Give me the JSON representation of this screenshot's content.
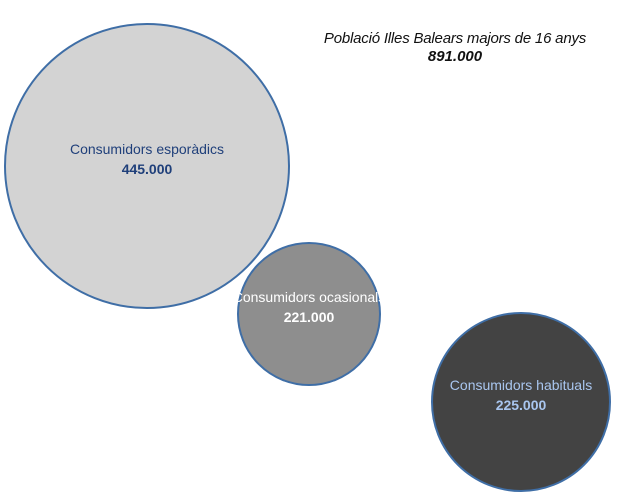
{
  "title": {
    "text": "Població Illes Balears majors de 16 anys",
    "total": "891.000"
  },
  "colors": {
    "outline": "#3f6ea6",
    "label_blue": "#1f3f7a",
    "label_light": "#ffffff",
    "label_pale_blue": "#a9c6ef"
  },
  "chart_data": {
    "type": "bubble",
    "title": "Població Illes Balears majors de 16 anys",
    "total": 891000,
    "grid": false,
    "legend": "none",
    "series": [
      {
        "name": "Consumidors esporàdics",
        "value": 445000,
        "value_label": "445.000",
        "fill": "#d3d3d3",
        "text_color": "#1f3f7a"
      },
      {
        "name": "Consumidors ocasionals",
        "value": 221000,
        "value_label": "221.000",
        "fill": "#8e8e8e",
        "text_color": "#ffffff"
      },
      {
        "name": "Consumidors habituals",
        "value": 225000,
        "value_label": "225.000",
        "fill": "#434343",
        "text_color": "#a9c6ef"
      }
    ]
  }
}
